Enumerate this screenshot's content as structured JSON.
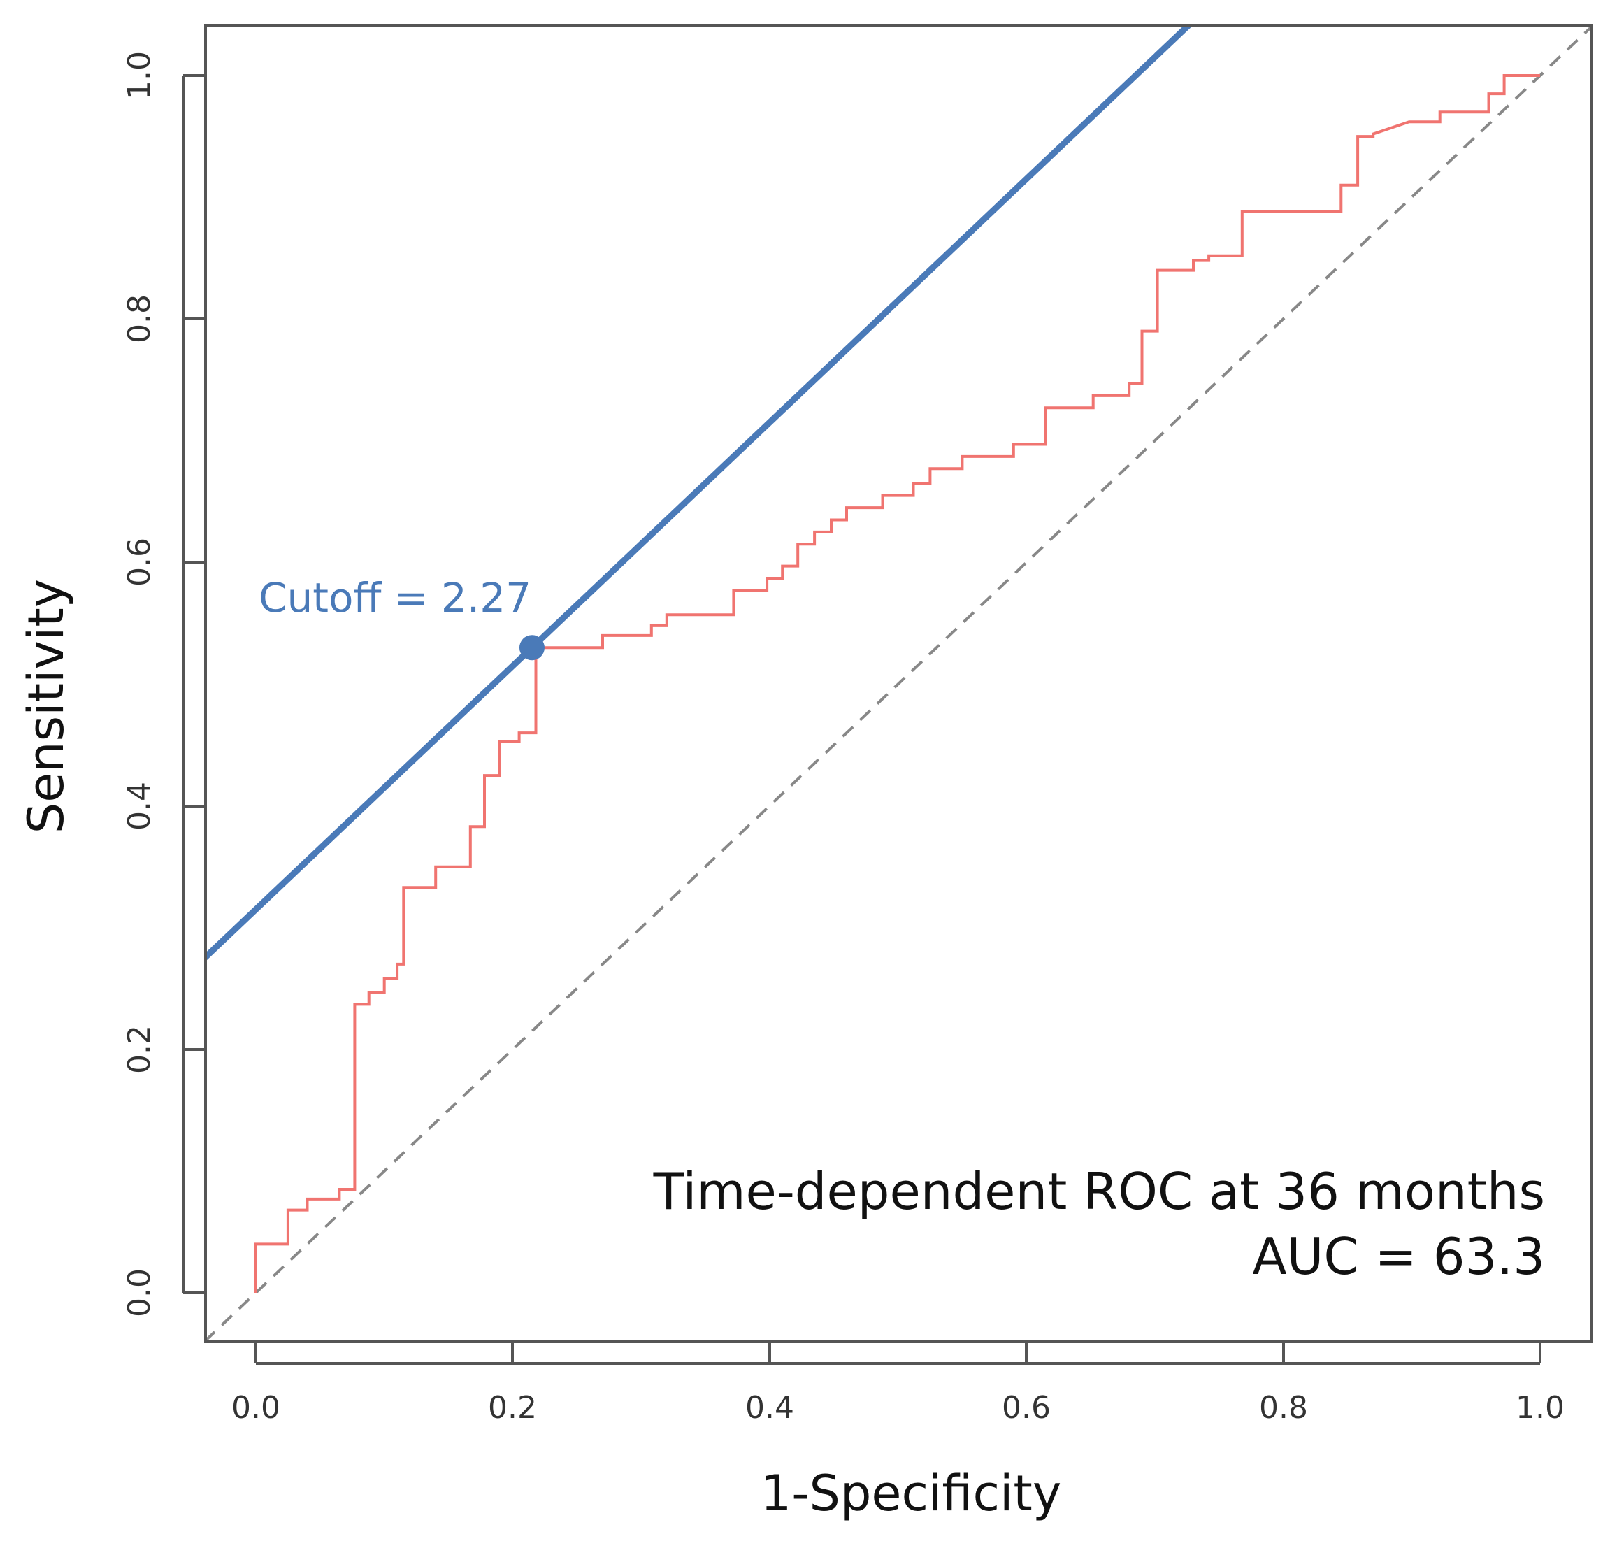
{
  "chart_data": {
    "type": "line",
    "xlabel": "1-Specificity",
    "ylabel": "Sensitivity",
    "xlim": [
      -0.04,
      1.04
    ],
    "ylim": [
      -0.04,
      1.04
    ],
    "x_ticks": [
      "0.0",
      "0.2",
      "0.4",
      "0.6",
      "0.8",
      "1.0"
    ],
    "y_ticks": [
      "0.0",
      "0.2",
      "0.4",
      "0.6",
      "0.8",
      "1.0"
    ],
    "annotation_lines": [
      "Time-dependent ROC at 36 months",
      "AUC = 63.3"
    ],
    "cutoff": {
      "label": "Cutoff = 2.27",
      "x": 0.215,
      "y": 0.53,
      "color": "#4a7ab8"
    },
    "tangent_line": {
      "slope": 1.0,
      "intercept": 0.315,
      "color": "#4a7ab8"
    },
    "reference_line": {
      "from": [
        0,
        0
      ],
      "to": [
        1,
        1
      ],
      "color": "#888888",
      "style": "dashed"
    },
    "series": [
      {
        "name": "ROC",
        "color": "#f07470",
        "points": [
          [
            0.0,
            0.0
          ],
          [
            0.0,
            0.04
          ],
          [
            0.025,
            0.04
          ],
          [
            0.025,
            0.068
          ],
          [
            0.04,
            0.068
          ],
          [
            0.04,
            0.077
          ],
          [
            0.065,
            0.077
          ],
          [
            0.065,
            0.085
          ],
          [
            0.077,
            0.085
          ],
          [
            0.077,
            0.237
          ],
          [
            0.088,
            0.237
          ],
          [
            0.088,
            0.247
          ],
          [
            0.1,
            0.247
          ],
          [
            0.1,
            0.258
          ],
          [
            0.11,
            0.258
          ],
          [
            0.11,
            0.27
          ],
          [
            0.115,
            0.27
          ],
          [
            0.115,
            0.333
          ],
          [
            0.14,
            0.333
          ],
          [
            0.14,
            0.35
          ],
          [
            0.167,
            0.35
          ],
          [
            0.167,
            0.383
          ],
          [
            0.178,
            0.383
          ],
          [
            0.178,
            0.425
          ],
          [
            0.19,
            0.425
          ],
          [
            0.19,
            0.453
          ],
          [
            0.205,
            0.453
          ],
          [
            0.205,
            0.46
          ],
          [
            0.218,
            0.46
          ],
          [
            0.218,
            0.53
          ],
          [
            0.27,
            0.53
          ],
          [
            0.27,
            0.54
          ],
          [
            0.308,
            0.54
          ],
          [
            0.308,
            0.548
          ],
          [
            0.32,
            0.548
          ],
          [
            0.32,
            0.557
          ],
          [
            0.372,
            0.557
          ],
          [
            0.372,
            0.577
          ],
          [
            0.398,
            0.577
          ],
          [
            0.398,
            0.587
          ],
          [
            0.41,
            0.587
          ],
          [
            0.41,
            0.597
          ],
          [
            0.422,
            0.597
          ],
          [
            0.422,
            0.615
          ],
          [
            0.435,
            0.615
          ],
          [
            0.435,
            0.625
          ],
          [
            0.448,
            0.625
          ],
          [
            0.448,
            0.635
          ],
          [
            0.46,
            0.635
          ],
          [
            0.46,
            0.645
          ],
          [
            0.488,
            0.645
          ],
          [
            0.488,
            0.655
          ],
          [
            0.512,
            0.655
          ],
          [
            0.512,
            0.665
          ],
          [
            0.525,
            0.665
          ],
          [
            0.525,
            0.677
          ],
          [
            0.55,
            0.677
          ],
          [
            0.55,
            0.687
          ],
          [
            0.59,
            0.687
          ],
          [
            0.59,
            0.697
          ],
          [
            0.615,
            0.697
          ],
          [
            0.615,
            0.727
          ],
          [
            0.652,
            0.727
          ],
          [
            0.652,
            0.737
          ],
          [
            0.68,
            0.737
          ],
          [
            0.68,
            0.747
          ],
          [
            0.69,
            0.747
          ],
          [
            0.69,
            0.79
          ],
          [
            0.702,
            0.79
          ],
          [
            0.702,
            0.84
          ],
          [
            0.73,
            0.84
          ],
          [
            0.73,
            0.848
          ],
          [
            0.742,
            0.848
          ],
          [
            0.742,
            0.852
          ],
          [
            0.768,
            0.852
          ],
          [
            0.768,
            0.888
          ],
          [
            0.845,
            0.888
          ],
          [
            0.845,
            0.91
          ],
          [
            0.858,
            0.91
          ],
          [
            0.858,
            0.95
          ],
          [
            0.87,
            0.95
          ],
          [
            0.87,
            0.952
          ],
          [
            0.898,
            0.962
          ],
          [
            0.922,
            0.962
          ],
          [
            0.922,
            0.97
          ],
          [
            0.96,
            0.97
          ],
          [
            0.96,
            0.985
          ],
          [
            0.972,
            0.985
          ],
          [
            0.972,
            1.0
          ],
          [
            1.0,
            1.0
          ]
        ]
      }
    ]
  }
}
